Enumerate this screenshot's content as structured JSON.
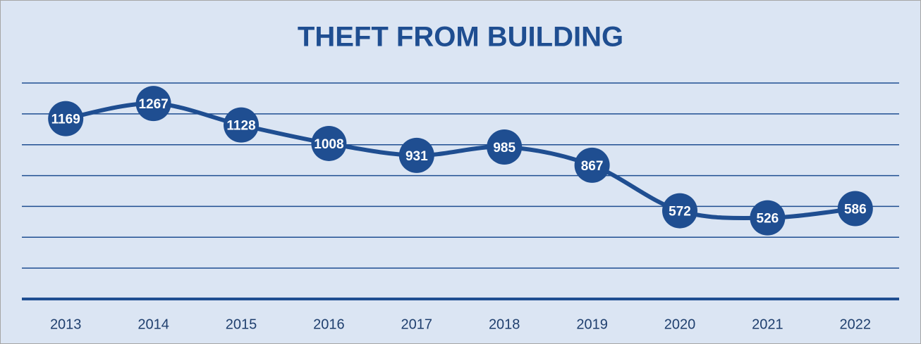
{
  "chart_data": {
    "type": "line",
    "title": "THEFT FROM BUILDING",
    "categories": [
      "2013",
      "2014",
      "2015",
      "2016",
      "2017",
      "2018",
      "2019",
      "2020",
      "2021",
      "2022"
    ],
    "values": [
      1169,
      1267,
      1128,
      1008,
      931,
      985,
      867,
      572,
      526,
      586
    ],
    "color": "#1f4e91",
    "ylim": [
      0,
      1400
    ],
    "yticks": [
      0,
      200,
      400,
      600,
      800,
      1000,
      1200,
      1400
    ],
    "grid": true
  }
}
